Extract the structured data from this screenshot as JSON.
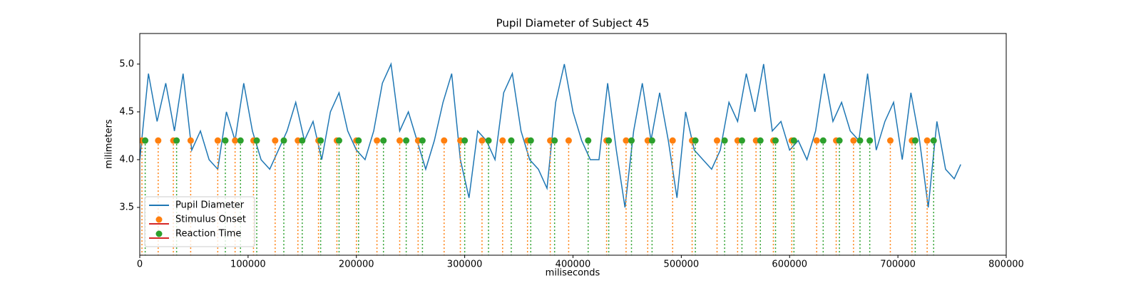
{
  "chart_data": {
    "type": "line",
    "title": "Pupil Diameter of Subject 45",
    "xlabel": "miliseconds",
    "ylabel": "milimeters",
    "xlim": [
      0,
      800000
    ],
    "xticks": [
      0,
      100000,
      200000,
      300000,
      400000,
      500000,
      600000,
      700000,
      800000
    ],
    "ylim": [
      3.0,
      5.32
    ],
    "yticks": [
      3.5,
      {
        "value": 4,
        "label": "4.0"
      },
      4.5,
      {
        "value": 5,
        "label": "5.0"
      }
    ],
    "legend": "lower left",
    "series": [
      {
        "name": "Pupil Diameter",
        "type": "line",
        "color": "#1f77b4",
        "x": [
          0,
          8000,
          16000,
          24000,
          32000,
          40000,
          48000,
          56000,
          64000,
          72000,
          80000,
          88000,
          96000,
          104000,
          112000,
          120000,
          128000,
          136000,
          144000,
          152000,
          160000,
          168000,
          176000,
          184000,
          192000,
          200000,
          208000,
          216000,
          224000,
          232000,
          240000,
          248000,
          256000,
          264000,
          272000,
          280000,
          288000,
          296000,
          304000,
          312000,
          320000,
          328000,
          336000,
          344000,
          352000,
          360000,
          368000,
          376000,
          384000,
          392000,
          400000,
          408000,
          416000,
          424000,
          432000,
          440000,
          448000,
          456000,
          464000,
          472000,
          480000,
          488000,
          496000,
          504000,
          512000,
          520000,
          528000,
          536000,
          544000,
          552000,
          560000,
          568000,
          576000,
          584000,
          592000,
          600000,
          608000,
          616000,
          624000,
          632000,
          640000,
          648000,
          656000,
          664000,
          672000,
          680000,
          688000,
          696000,
          704000,
          712000,
          720000,
          728000,
          736000,
          744000,
          752000,
          758000
        ],
        "values": [
          4.0,
          4.9,
          4.4,
          4.8,
          4.3,
          4.9,
          4.1,
          4.3,
          4.0,
          3.9,
          4.5,
          4.2,
          4.8,
          4.3,
          4.0,
          3.9,
          4.1,
          4.3,
          4.6,
          4.2,
          4.4,
          4.0,
          4.5,
          4.7,
          4.3,
          4.1,
          4.0,
          4.3,
          4.8,
          5.0,
          4.3,
          4.5,
          4.2,
          3.9,
          4.2,
          4.6,
          4.9,
          4.0,
          3.6,
          4.3,
          4.2,
          4.0,
          4.7,
          4.9,
          4.3,
          4.0,
          3.9,
          3.7,
          4.6,
          5.0,
          4.5,
          4.2,
          4.0,
          4.0,
          4.8,
          4.1,
          3.5,
          4.3,
          4.8,
          4.2,
          4.7,
          4.2,
          3.6,
          4.5,
          4.1,
          4.0,
          3.9,
          4.1,
          4.6,
          4.4,
          4.9,
          4.5,
          5.0,
          4.3,
          4.4,
          4.1,
          4.2,
          4.0,
          4.3,
          4.9,
          4.4,
          4.6,
          4.3,
          4.2,
          4.9,
          4.1,
          4.4,
          4.6,
          4.0,
          4.7,
          4.2,
          3.5,
          4.4,
          3.9,
          3.8,
          3.95
        ]
      },
      {
        "name": "Stimulus Onset",
        "type": "stem",
        "color": "#ff7f0e",
        "x": [
          2000,
          17000,
          31000,
          47000,
          72000,
          88000,
          105000,
          125000,
          146000,
          165000,
          182000,
          200000,
          219000,
          240000,
          257000,
          281000,
          296000,
          316000,
          335000,
          358000,
          379000,
          396000,
          431000,
          449000,
          469000,
          492000,
          510000,
          533000,
          552000,
          569000,
          585000,
          602000,
          625000,
          643000,
          659000,
          693000,
          713000,
          727000
        ],
        "values": [
          4.2,
          4.2,
          4.2,
          4.2,
          4.2,
          4.2,
          4.2,
          4.2,
          4.2,
          4.2,
          4.2,
          4.2,
          4.2,
          4.2,
          4.2,
          4.2,
          4.2,
          4.2,
          4.2,
          4.2,
          4.2,
          4.2,
          4.2,
          4.2,
          4.2,
          4.2,
          4.2,
          4.2,
          4.2,
          4.2,
          4.2,
          4.2,
          4.2,
          4.2,
          4.2,
          4.2,
          4.2,
          4.2
        ]
      },
      {
        "name": "Reaction Time",
        "type": "stem",
        "color": "#2ca02c",
        "x": [
          5000,
          34000,
          79000,
          93000,
          108000,
          133000,
          150000,
          167000,
          184000,
          202000,
          225000,
          246000,
          261000,
          300000,
          322000,
          343000,
          361000,
          383000,
          414000,
          433000,
          454000,
          473000,
          513000,
          540000,
          556000,
          573000,
          587000,
          604000,
          631000,
          646000,
          665000,
          674000,
          716000,
          733000
        ],
        "values": [
          4.2,
          4.2,
          4.2,
          4.2,
          4.2,
          4.2,
          4.2,
          4.2,
          4.2,
          4.2,
          4.2,
          4.2,
          4.2,
          4.2,
          4.2,
          4.2,
          4.2,
          4.2,
          4.2,
          4.2,
          4.2,
          4.2,
          4.2,
          4.2,
          4.2,
          4.2,
          4.2,
          4.2,
          4.2,
          4.2,
          4.2,
          4.2,
          4.2,
          4.2
        ]
      }
    ]
  }
}
